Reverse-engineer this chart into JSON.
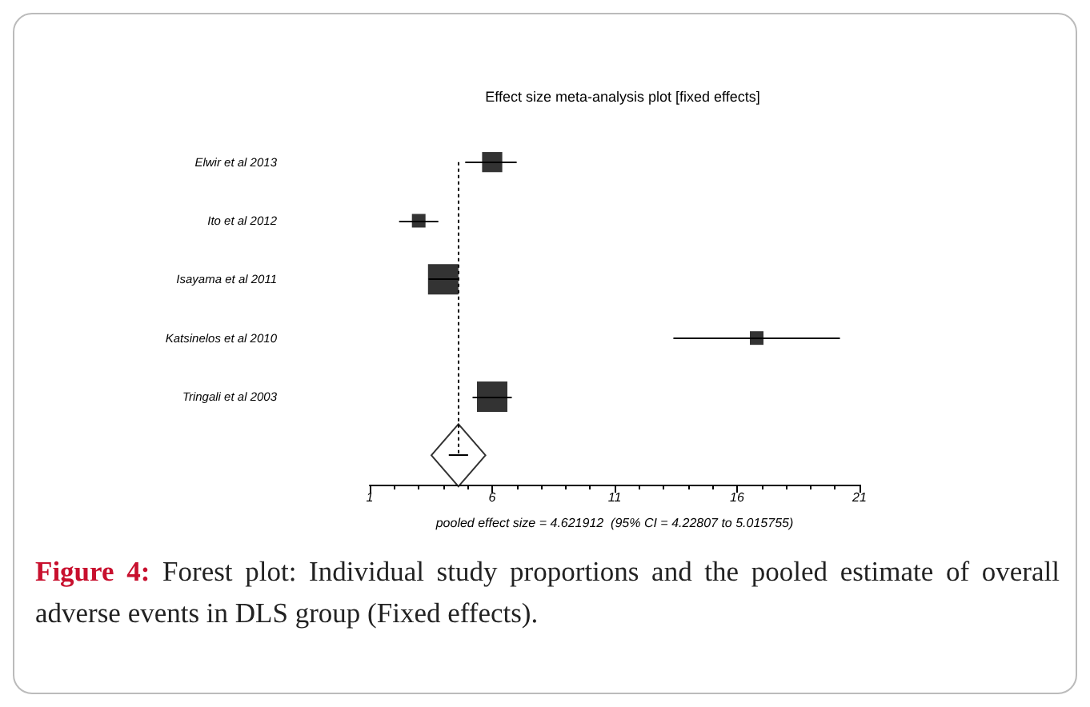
{
  "chart_data": {
    "type": "scatter",
    "title": "Effect size meta-analysis plot [fixed effects]",
    "xlabel": "pooled effect size = 4.621912  (95% CI = 4.22807 to 5.015755)",
    "orientation": "horizontal",
    "grid": false,
    "marker": "square",
    "categories": [
      "Elwir et al 2013",
      "Ito et al 2012",
      "Isayama et al 2011",
      "Katsinelos et al 2010",
      "Tringali et al 2003",
      null
    ],
    "xlim": [
      1,
      21
    ],
    "xticks": [
      1,
      6,
      11,
      16,
      21
    ],
    "ref_lines": [
      {
        "axis": "x",
        "value": 4.621912,
        "line_style": "dotted",
        "color": "#000000"
      }
    ],
    "series": [
      {
        "color": "#000000",
        "values": [
          6.0,
          3.0,
          4.0,
          16.8,
          6.0,
          null
        ],
        "errors": [
          [
            4.9,
            7.0
          ],
          [
            2.2,
            3.8
          ],
          [
            3.4,
            4.6
          ],
          [
            13.4,
            20.2
          ],
          [
            5.2,
            6.8
          ],
          null
        ],
        "sizes": [
          0.44,
          0.2,
          1,
          0.2,
          1,
          null
        ]
      },
      {
        "color": "#000000",
        "marker": "diamond",
        "values": [
          null,
          null,
          null,
          null,
          null,
          4.621912
        ],
        "errors": [
          null,
          null,
          null,
          null,
          null,
          [
            4.22807,
            5.015755
          ]
        ]
      }
    ],
    "annotations": [
      "Figure 4: Forest plot: Individual study proportions and the pooled estimate of overall adverse events in DLS group (Fixed effects)."
    ]
  }
}
